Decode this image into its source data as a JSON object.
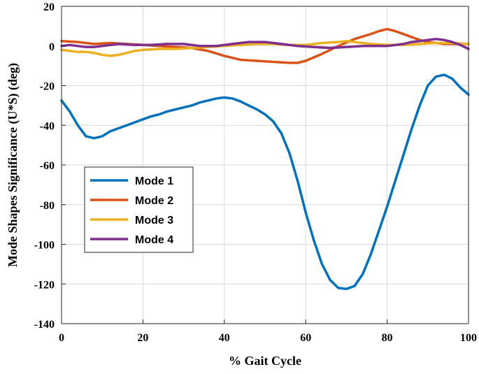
{
  "chart_data": {
    "type": "line",
    "title": "",
    "xlabel": "% Gait Cycle",
    "ylabel": "Mode Shapes Significance (U*S) (deg)",
    "xlim": [
      0,
      100
    ],
    "ylim": [
      -140,
      20
    ],
    "xticks": [
      0,
      20,
      40,
      60,
      80,
      100
    ],
    "yticks": [
      -140,
      -120,
      -100,
      -80,
      -60,
      -40,
      -20,
      0,
      20
    ],
    "grid": true,
    "legend_position": "center-left",
    "series": [
      {
        "name": "Mode 1",
        "color": "#0072BD",
        "x": [
          0,
          2,
          4,
          6,
          8,
          10,
          12,
          14,
          16,
          18,
          20,
          22,
          24,
          26,
          28,
          30,
          32,
          34,
          36,
          38,
          40,
          42,
          44,
          46,
          48,
          50,
          52,
          54,
          56,
          58,
          60,
          62,
          64,
          66,
          68,
          70,
          72,
          74,
          76,
          78,
          80,
          82,
          84,
          86,
          88,
          90,
          92,
          94,
          96,
          98,
          100
        ],
        "y": [
          -27.5,
          -33,
          -40,
          -45.5,
          -46.5,
          -45.5,
          -43,
          -41.5,
          -40,
          -38.5,
          -37,
          -35.5,
          -34.5,
          -33,
          -32,
          -31,
          -30,
          -28.5,
          -27.5,
          -26.5,
          -26,
          -26.5,
          -28,
          -30,
          -32,
          -34.5,
          -38,
          -44,
          -54,
          -68,
          -84,
          -98,
          -110,
          -118,
          -122,
          -122.5,
          -121,
          -115,
          -105,
          -93,
          -81,
          -68,
          -55,
          -42,
          -30,
          -20,
          -15.5,
          -14.5,
          -16.5,
          -21,
          -24.5
        ]
      },
      {
        "name": "Mode 2",
        "color": "#D95319",
        "x": [
          0,
          4,
          8,
          12,
          16,
          20,
          24,
          28,
          32,
          36,
          40,
          44,
          48,
          52,
          56,
          58,
          60,
          64,
          68,
          72,
          76,
          78,
          80,
          82,
          84,
          86,
          88,
          90,
          92,
          94,
          96,
          98,
          100
        ],
        "y": [
          2.5,
          2,
          1,
          1.5,
          1,
          0.5,
          0,
          -0.5,
          -1,
          -2.5,
          -5,
          -7,
          -7.5,
          -8,
          -8.5,
          -8.5,
          -7.5,
          -4,
          0,
          3.5,
          6,
          7.5,
          8.5,
          7.5,
          6,
          4.5,
          3,
          2,
          1.5,
          1,
          1,
          1,
          1
        ]
      },
      {
        "name": "Mode 3",
        "color": "#EDB120",
        "x": [
          0,
          2,
          4,
          6,
          8,
          10,
          12,
          14,
          16,
          18,
          20,
          24,
          28,
          32,
          36,
          40,
          44,
          48,
          52,
          56,
          60,
          64,
          68,
          70,
          72,
          76,
          80,
          84,
          88,
          92,
          96,
          100
        ],
        "y": [
          -2,
          -2.5,
          -3,
          -3,
          -3.5,
          -4.5,
          -5,
          -4.5,
          -3.5,
          -2.5,
          -2,
          -1.5,
          -1.5,
          -1,
          -0.5,
          0,
          0.5,
          1,
          1,
          0.5,
          0.5,
          1.5,
          2,
          2.5,
          2,
          1,
          0.5,
          0.5,
          1,
          1.5,
          1.5,
          1
        ]
      },
      {
        "name": "Mode 4",
        "color": "#7E2F8E",
        "x": [
          0,
          2,
          4,
          6,
          8,
          10,
          14,
          18,
          22,
          26,
          30,
          34,
          38,
          42,
          46,
          50,
          54,
          58,
          62,
          66,
          70,
          74,
          78,
          80,
          82,
          84,
          86,
          88,
          90,
          92,
          94,
          96,
          98,
          100
        ],
        "y": [
          0,
          0.5,
          0,
          -0.5,
          -0.5,
          0,
          1,
          0.5,
          0.5,
          1,
          1,
          0,
          0,
          1,
          2,
          2,
          1,
          0,
          -0.5,
          -1,
          -0.5,
          0,
          0,
          0,
          0.5,
          1,
          2,
          2.5,
          3,
          3.5,
          3,
          2,
          0.5,
          -1.5
        ]
      }
    ]
  }
}
